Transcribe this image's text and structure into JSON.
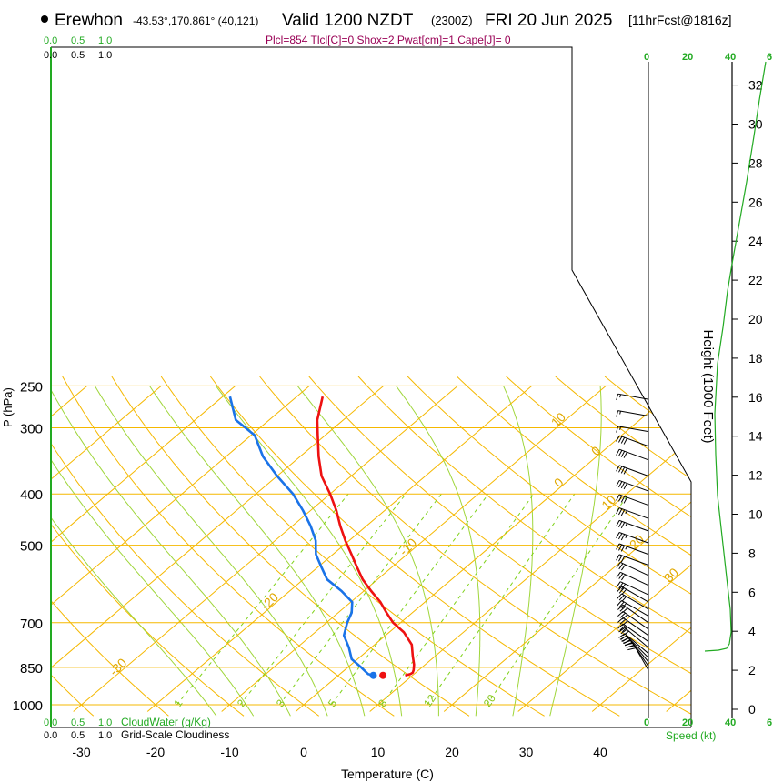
{
  "header": {
    "location": "Erewhon",
    "coords": "-43.53°,170.861° (40,121)",
    "valid": "Valid 1200 NZDT",
    "utc": "(2300Z)",
    "date": "FRI 20 Jun 2025",
    "forecast": "[11hrFcst@1816z]",
    "indices": "Plcl=854 Tlcl[C]=0 Shox=2 Pwat[cm]=1 Cape[J]= 0"
  },
  "colors": {
    "isotherm": "#f5b800",
    "mixing": "#7fd21a",
    "adiabat": "#9fd63a",
    "temperature": "#ee1111",
    "dewpoint": "#1a73e8",
    "green_text": "#22aa22",
    "magenta_text": "#990055",
    "isotherm_label": "#e0a800",
    "mixing_label": "#88c820"
  },
  "chart_data": {
    "type": "skew-t",
    "xlabel": "Temperature (C)",
    "ylabel": "P (hPa)",
    "right_label": "Height (1000 Feet)",
    "speed_label": "Speed (kt)",
    "x_ticks": [
      -30,
      -20,
      -10,
      0,
      10,
      20,
      30,
      40
    ],
    "pressure_ticks": [
      250,
      300,
      400,
      500,
      700,
      850,
      1000
    ],
    "isotherm_labels": [
      {
        "text": "0",
        "t": 0,
        "p": 340
      },
      {
        "text": "10",
        "t": 10,
        "p": 430
      },
      {
        "text": "20",
        "t": 20,
        "p": 510
      },
      {
        "text": "30",
        "t": 30,
        "p": 590
      },
      {
        "text": "10",
        "t": -10,
        "p": 300
      },
      {
        "text": "0",
        "t": 0,
        "p": 390
      },
      {
        "text": "-10",
        "t": -10,
        "p": 525
      },
      {
        "text": "-20",
        "t": -20,
        "p": 665
      },
      {
        "text": "-30",
        "t": -30,
        "p": 885
      }
    ],
    "mixing_ratio_labels": [
      "1",
      "2",
      "3",
      "5",
      "8",
      "12",
      "20"
    ],
    "height_ticks": [
      0,
      2,
      4,
      6,
      8,
      10,
      12,
      14,
      16,
      18,
      20,
      22,
      24,
      26,
      28,
      30,
      32
    ],
    "speed_ticks": [
      "0",
      "20",
      "40"
    ],
    "cloud_ticks": [
      "0",
      "6"
    ],
    "cloudwater_label": "CloudWater (g/Kg)",
    "cloudiness_label": "Grid-Scale Cloudiness",
    "cloud_scale": [
      "0.0",
      "0.5",
      "1.0"
    ],
    "series": [
      {
        "name": "Temperature",
        "temp": [
          9,
          9.5,
          9.6,
          9.3,
          8.5,
          7,
          5,
          2,
          -1,
          -3.5,
          -6,
          -9,
          -12,
          -14.7,
          -17.5,
          -20.5,
          -23.5,
          -26.5,
          -30,
          -34,
          -37.5,
          -41,
          -43.5,
          -46.5
        ],
        "pressure": [
          880,
          875,
          870,
          860,
          840,
          810,
          770,
          730,
          700,
          670,
          640,
          610,
          580,
          550,
          520,
          490,
          460,
          430,
          400,
          370,
          340,
          310,
          290,
          262
        ]
      },
      {
        "name": "Dewpoint",
        "temp": [
          4.7,
          3.8,
          3,
          1.8,
          -0.8,
          -3,
          -5.6,
          -7.2,
          -8.2,
          -9.8,
          -13,
          -16.8,
          -19.5,
          -22.3,
          -24.5,
          -27.5,
          -31,
          -35,
          -40,
          -45,
          -49.5,
          -54.5,
          -59
        ],
        "pressure": [
          880,
          875,
          865,
          850,
          820,
          780,
          740,
          700,
          670,
          640,
          610,
          580,
          550,
          520,
          490,
          460,
          430,
          400,
          370,
          340,
          310,
          290,
          262
        ]
      }
    ],
    "wind_barbs": [
      {
        "p": 265,
        "spd": 15,
        "dir": 280
      },
      {
        "p": 285,
        "spd": 15,
        "dir": 280
      },
      {
        "p": 305,
        "spd": 15,
        "dir": 280
      },
      {
        "p": 325,
        "spd": 40,
        "dir": 290
      },
      {
        "p": 345,
        "spd": 40,
        "dir": 290
      },
      {
        "p": 370,
        "spd": 40,
        "dir": 290
      },
      {
        "p": 395,
        "spd": 40,
        "dir": 290
      },
      {
        "p": 420,
        "spd": 40,
        "dir": 290
      },
      {
        "p": 445,
        "spd": 35,
        "dir": 290
      },
      {
        "p": 470,
        "spd": 35,
        "dir": 290
      },
      {
        "p": 495,
        "spd": 35,
        "dir": 290
      },
      {
        "p": 520,
        "spd": 35,
        "dir": 290
      },
      {
        "p": 545,
        "spd": 30,
        "dir": 290
      },
      {
        "p": 570,
        "spd": 30,
        "dir": 295
      },
      {
        "p": 595,
        "spd": 30,
        "dir": 295
      },
      {
        "p": 620,
        "spd": 30,
        "dir": 295
      },
      {
        "p": 640,
        "spd": 30,
        "dir": 300
      },
      {
        "p": 660,
        "spd": 30,
        "dir": 300
      },
      {
        "p": 680,
        "spd": 30,
        "dir": 300
      },
      {
        "p": 700,
        "spd": 30,
        "dir": 305
      },
      {
        "p": 720,
        "spd": 30,
        "dir": 305
      },
      {
        "p": 740,
        "spd": 30,
        "dir": 305
      },
      {
        "p": 760,
        "spd": 30,
        "dir": 305
      },
      {
        "p": 780,
        "spd": 30,
        "dir": 310
      },
      {
        "p": 800,
        "spd": 30,
        "dir": 310
      },
      {
        "p": 815,
        "spd": 30,
        "dir": 315
      },
      {
        "p": 830,
        "spd": 30,
        "dir": 320
      },
      {
        "p": 845,
        "spd": 30,
        "dir": 325
      },
      {
        "p": 860,
        "spd": 30,
        "dir": 330
      }
    ]
  }
}
